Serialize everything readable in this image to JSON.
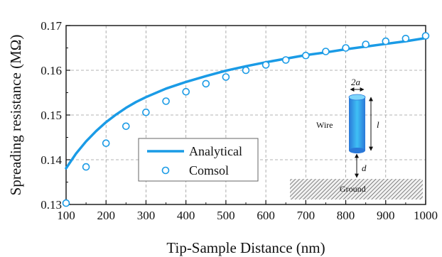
{
  "chart_data": {
    "type": "line",
    "xlabel": "Tip-Sample Distance (nm)",
    "ylabel": "Spreading resistance (MΩ)",
    "xlim": [
      100,
      1000
    ],
    "ylim": [
      0.13,
      0.17
    ],
    "xticks": [
      "100",
      "200",
      "300",
      "400",
      "500",
      "600",
      "700",
      "800",
      "900",
      "1000"
    ],
    "yticks": [
      "0.13",
      "0.14",
      "0.15",
      "0.16",
      "0.17"
    ],
    "grid": true,
    "legend_position": "center-left",
    "series": [
      {
        "name": "Analytical",
        "type": "line",
        "color": "#1a9be6",
        "x": [
          100,
          125,
          150,
          175,
          200,
          225,
          250,
          275,
          300,
          350,
          400,
          450,
          500,
          550,
          600,
          650,
          700,
          750,
          800,
          850,
          900,
          950,
          1000
        ],
        "y": [
          0.1381,
          0.1414,
          0.1441,
          0.1464,
          0.1484,
          0.1501,
          0.1516,
          0.1529,
          0.154,
          0.1559,
          0.1574,
          0.1587,
          0.1599,
          0.1609,
          0.1618,
          0.1626,
          0.1634,
          0.164,
          0.1647,
          0.1653,
          0.1659,
          0.1665,
          0.1672
        ]
      },
      {
        "name": "Comsol",
        "type": "scatter",
        "color": "#1a9be6",
        "x": [
          100,
          150,
          200,
          250,
          300,
          350,
          400,
          450,
          500,
          550,
          600,
          650,
          700,
          750,
          800,
          850,
          900,
          950,
          1000
        ],
        "y": [
          0.1303,
          0.1384,
          0.1437,
          0.1475,
          0.1506,
          0.1531,
          0.1552,
          0.157,
          0.1585,
          0.16,
          0.1612,
          0.1623,
          0.1633,
          0.1642,
          0.165,
          0.1658,
          0.1665,
          0.1671,
          0.1677
        ]
      }
    ]
  },
  "inset": {
    "wire_label": "Wire",
    "radius_label": "2a",
    "length_label": "l",
    "gap_label": "d",
    "ground_label": "Ground"
  }
}
